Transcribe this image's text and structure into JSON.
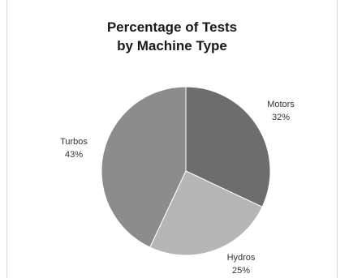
{
  "chart_data": {
    "type": "pie",
    "title_lines": [
      "Percentage of Tests",
      "by Machine Type"
    ],
    "categories": [
      "Motors",
      "Hydros",
      "Turbos"
    ],
    "values": [
      32,
      25,
      43
    ],
    "value_labels": [
      "32%",
      "25%",
      "43%"
    ],
    "colors": [
      "#6d6d6d",
      "#b5b5b5",
      "#8c8c8c"
    ],
    "start": "12 o'clock",
    "direction": "clockwise",
    "legend": "none",
    "data_labels": "outside"
  }
}
